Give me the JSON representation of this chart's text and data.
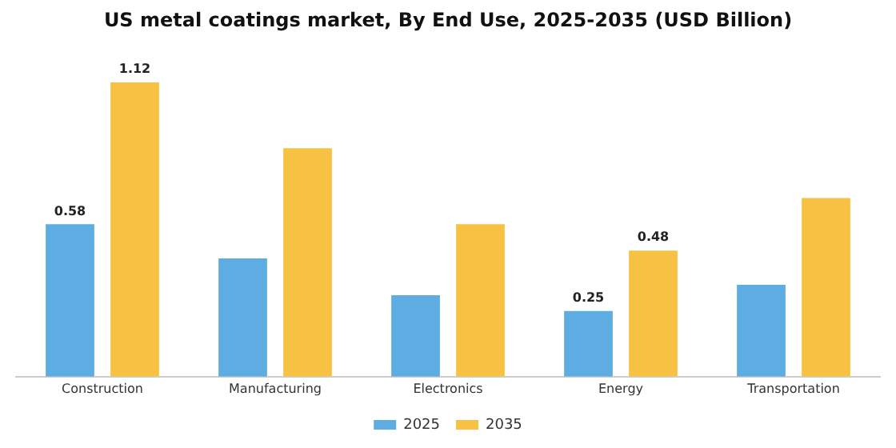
{
  "chart_data": {
    "type": "bar",
    "title": "US metal coatings market, By End Use, 2025-2035 (USD Billion)",
    "categories": [
      "Construction",
      "Manufacturing",
      "Electronics",
      "Energy",
      "Transportation"
    ],
    "series": [
      {
        "name": "2025",
        "color": "#5dade2",
        "values": [
          0.58,
          0.45,
          0.31,
          0.25,
          0.35
        ],
        "value_labels": [
          "0.58",
          null,
          null,
          "0.25",
          null
        ]
      },
      {
        "name": "2035",
        "color": "#f7c244",
        "values": [
          1.12,
          0.87,
          0.58,
          0.48,
          0.68
        ],
        "value_labels": [
          "1.12",
          null,
          null,
          "0.48",
          null
        ]
      }
    ],
    "legend": "bottom",
    "tick_labels": "x",
    "grid": false
  }
}
